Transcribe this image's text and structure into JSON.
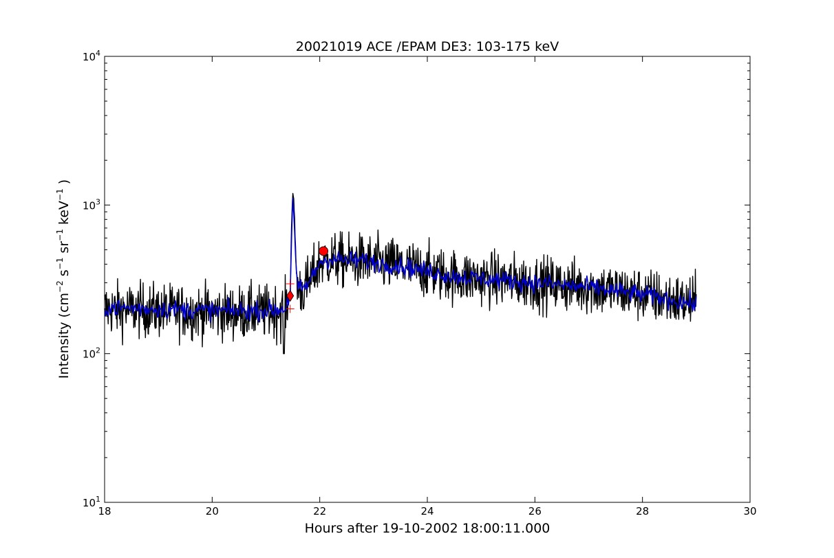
{
  "chart_data": {
    "type": "line",
    "title": "20021019 ACE /EPAM DE3: 103-175 keV",
    "xlabel": "Hours after 19-10-2002 18:00:11.000",
    "ylabel_main": "Intensity (cm",
    "ylabel_parts": [
      "Intensity (cm",
      "−2",
      " s",
      "−1",
      " sr",
      "−1",
      " keV",
      "−1",
      " )"
    ],
    "xlim": [
      18,
      30
    ],
    "ylim": [
      10,
      10000
    ],
    "yscale": "log",
    "grid": false,
    "x_ticks": [
      {
        "value": 18,
        "label": "18"
      },
      {
        "value": 20,
        "label": "20"
      },
      {
        "value": 22,
        "label": "22"
      },
      {
        "value": 24,
        "label": "24"
      },
      {
        "value": 26,
        "label": "26"
      },
      {
        "value": 28,
        "label": "28"
      },
      {
        "value": 30,
        "label": "30"
      }
    ],
    "y_ticks": [
      {
        "value": 10,
        "base": "10",
        "exp": "1"
      },
      {
        "value": 100,
        "base": "10",
        "exp": "2"
      },
      {
        "value": 1000,
        "base": "10",
        "exp": "3"
      },
      {
        "value": 10000,
        "base": "10",
        "exp": "4"
      }
    ],
    "series": [
      {
        "role": "raw",
        "color": "#000000",
        "profile": [
          [
            18.0,
            200
          ],
          [
            19.0,
            195
          ],
          [
            20.0,
            190
          ],
          [
            21.0,
            190
          ],
          [
            21.35,
            195
          ],
          [
            21.45,
            250
          ],
          [
            21.48,
            900
          ],
          [
            21.5,
            1150
          ],
          [
            21.53,
            900
          ],
          [
            21.56,
            380
          ],
          [
            21.6,
            270
          ],
          [
            21.7,
            270
          ],
          [
            21.8,
            300
          ],
          [
            21.9,
            350
          ],
          [
            22.0,
            410
          ],
          [
            22.2,
            430
          ],
          [
            22.5,
            420
          ],
          [
            22.8,
            420
          ],
          [
            23.0,
            410
          ],
          [
            23.5,
            390
          ],
          [
            24.0,
            360
          ],
          [
            24.5,
            330
          ],
          [
            25.0,
            320
          ],
          [
            25.5,
            310
          ],
          [
            26.0,
            300
          ],
          [
            27.0,
            280
          ],
          [
            28.0,
            250
          ],
          [
            29.0,
            215
          ]
        ],
        "noise_log10": 0.09
      },
      {
        "role": "smoothed",
        "color": "#0000cc",
        "profile": [
          [
            18.0,
            205
          ],
          [
            19.0,
            200
          ],
          [
            20.0,
            195
          ],
          [
            21.0,
            195
          ],
          [
            21.35,
            200
          ],
          [
            21.45,
            250
          ],
          [
            21.48,
            700
          ],
          [
            21.5,
            1100
          ],
          [
            21.53,
            700
          ],
          [
            21.56,
            370
          ],
          [
            21.6,
            270
          ],
          [
            21.7,
            275
          ],
          [
            21.8,
            300
          ],
          [
            21.9,
            350
          ],
          [
            22.0,
            415
          ],
          [
            22.2,
            435
          ],
          [
            22.5,
            425
          ],
          [
            22.8,
            425
          ],
          [
            23.0,
            410
          ],
          [
            23.5,
            390
          ],
          [
            24.0,
            360
          ],
          [
            24.5,
            330
          ],
          [
            25.0,
            320
          ],
          [
            25.5,
            310
          ],
          [
            26.0,
            300
          ],
          [
            27.0,
            280
          ],
          [
            28.0,
            250
          ],
          [
            29.0,
            215
          ]
        ],
        "noise_log10": 0.03
      }
    ],
    "markers": [
      {
        "shape": "diamond",
        "x": 21.45,
        "y": 245,
        "color": "#ff0000"
      },
      {
        "shape": "circle",
        "x": 22.07,
        "y": 490,
        "color": "#ff0000"
      },
      {
        "shape": "plus",
        "x": 21.45,
        "y": 295,
        "color": "#ff0000"
      },
      {
        "shape": "plus",
        "x": 21.45,
        "y": 200,
        "color": "#ff0000"
      }
    ]
  }
}
